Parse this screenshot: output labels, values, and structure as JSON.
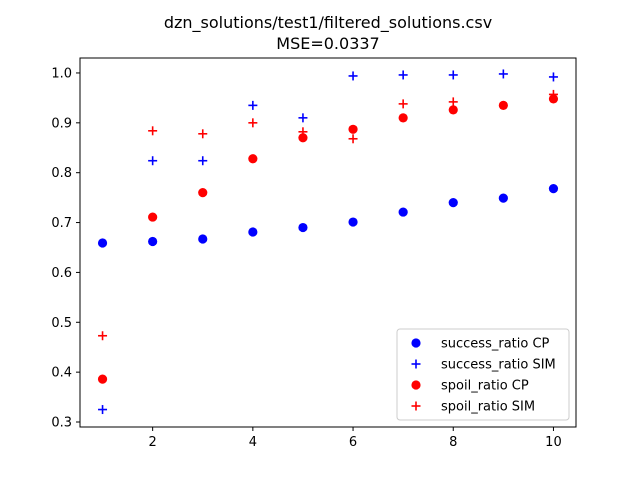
{
  "chart_data": {
    "type": "scatter",
    "title": "dzn_solutions/test1/filtered_solutions.csv",
    "subtitle": "MSE=0.0337",
    "xlabel": "",
    "ylabel": "",
    "xlim": [
      0.55,
      10.45
    ],
    "ylim": [
      0.29,
      1.03
    ],
    "x_ticks": [
      2,
      4,
      6,
      8,
      10
    ],
    "y_ticks": [
      0.3,
      0.4,
      0.5,
      0.6,
      0.7,
      0.8,
      0.9,
      1.0
    ],
    "x_tick_labels": [
      "2",
      "4",
      "6",
      "8",
      "10"
    ],
    "y_tick_labels": [
      "0.3",
      "0.4",
      "0.5",
      "0.6",
      "0.7",
      "0.8",
      "0.9",
      "1.0"
    ],
    "grid": false,
    "legend_position": "lower-right",
    "x": [
      1,
      2,
      3,
      4,
      5,
      6,
      7,
      8,
      9,
      10
    ],
    "series": [
      {
        "name": "success_ratio CP",
        "marker": "circle",
        "color": "#0000ff",
        "x": [
          1,
          2,
          3,
          4,
          5,
          6,
          7,
          8,
          9,
          10
        ],
        "values": [
          0.659,
          0.662,
          0.667,
          0.681,
          0.69,
          0.701,
          0.721,
          0.74,
          0.749,
          0.768
        ]
      },
      {
        "name": "success_ratio SIM",
        "marker": "plus",
        "color": "#0000ff",
        "x": [
          1,
          2,
          3,
          4,
          5,
          6,
          7,
          8,
          9,
          10
        ],
        "values": [
          0.325,
          0.824,
          0.824,
          0.935,
          0.91,
          0.994,
          0.996,
          0.996,
          0.998,
          0.992
        ]
      },
      {
        "name": "spoil_ratio CP",
        "marker": "circle",
        "color": "#ff0000",
        "x": [
          1,
          2,
          3,
          4,
          5,
          6,
          7,
          8,
          9,
          10
        ],
        "values": [
          0.386,
          0.711,
          0.76,
          0.828,
          0.87,
          0.887,
          0.91,
          0.926,
          0.935,
          0.948
        ]
      },
      {
        "name": "spoil_ratio SIM",
        "marker": "plus",
        "color": "#ff0000",
        "x": [
          1,
          2,
          3,
          4,
          5,
          6,
          7,
          8,
          9,
          10
        ],
        "values": [
          0.473,
          0.884,
          0.878,
          0.9,
          0.882,
          0.868,
          0.938,
          0.942,
          null,
          0.957
        ]
      }
    ]
  }
}
